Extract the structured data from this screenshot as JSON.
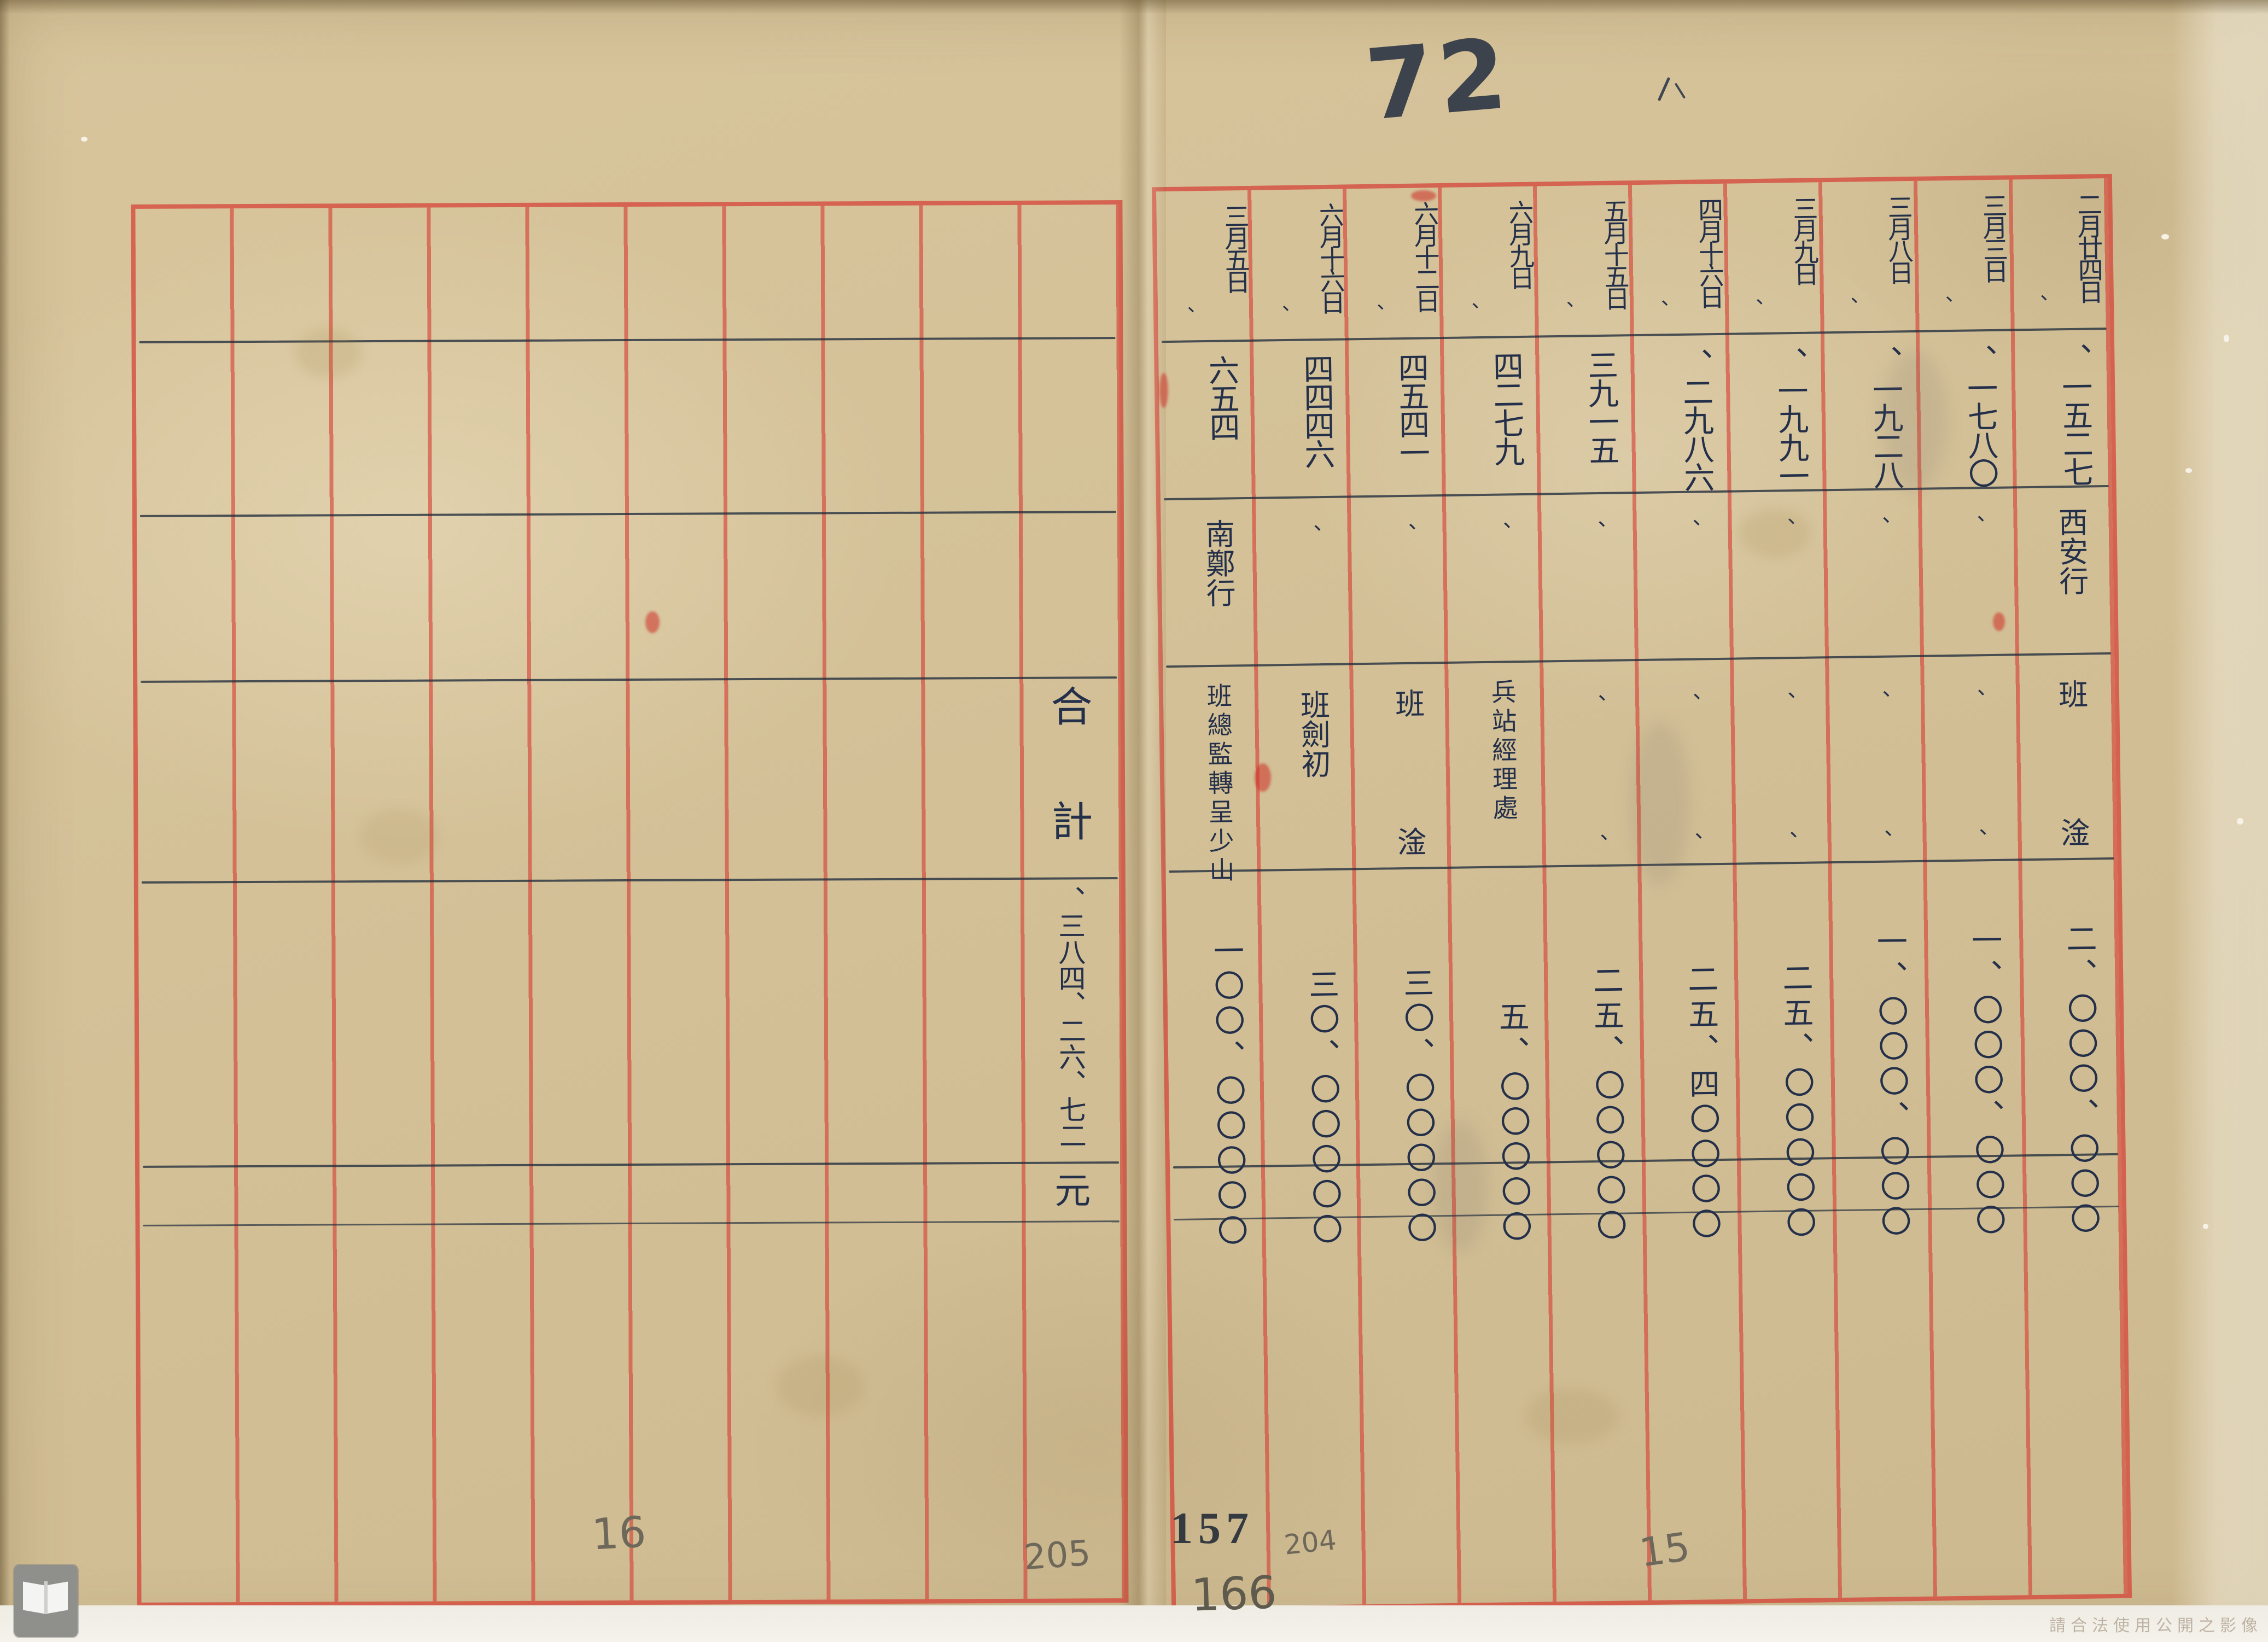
{
  "document": {
    "handwritten_page_mark": "72",
    "watermark": "請合法使用公開之影像",
    "page_numbers": {
      "left_pencil": "16",
      "left_inner_pencil": "205",
      "stamp_number": "157",
      "below_stamp_pencil": "166",
      "inner_small_pencil": "204",
      "right_pencil": "15"
    },
    "left_page": {
      "total_label_char1": "合",
      "total_label_char2": "計",
      "total_number": "、三八四、二六、七二",
      "total_unit": "元"
    },
    "right_page": {
      "entries": [
        {
          "date": "二月廿四日",
          "tick": "、",
          "serial": "、一五二七",
          "dest": "西安行",
          "payee_top": "班",
          "payee_bottom": "淦",
          "amount": "二、〇〇〇、〇〇〇"
        },
        {
          "date": "三月三日",
          "tick": "、",
          "serial": "、一七八〇",
          "dest": "、",
          "payee_top": "、",
          "payee_bottom": "、",
          "amount": "一、〇〇〇、〇〇〇"
        },
        {
          "date": "三月八日",
          "tick": "、",
          "serial": "、一九二八",
          "dest": "、",
          "payee_top": "、",
          "payee_bottom": "、",
          "amount": "一、〇〇〇、〇〇〇"
        },
        {
          "date": "三月九日",
          "tick": "、",
          "serial": "、一九九一",
          "dest": "、",
          "payee_top": "、",
          "payee_bottom": "、",
          "amount": "二五、〇〇〇〇〇"
        },
        {
          "date": "四月十六日",
          "tick": "、",
          "serial": "、二九八六",
          "dest": "、",
          "payee_top": "、",
          "payee_bottom": "、",
          "amount": "二五、四〇〇〇〇"
        },
        {
          "date": "五月十五日",
          "tick": "、",
          "serial": "三九一五",
          "dest": "、",
          "payee_top": "、",
          "payee_bottom": "、",
          "amount": "二五、〇〇〇〇〇"
        },
        {
          "date": "六月九日",
          "tick": "、",
          "serial": "四二七九",
          "dest": "、",
          "payee_top": "兵站經理處",
          "payee_bottom": "",
          "amount": "五、〇〇〇〇〇"
        },
        {
          "date": "六月十二日",
          "tick": "、",
          "serial": "四五四一",
          "dest": "、",
          "payee_top": "班",
          "payee_bottom": "淦",
          "amount": "三〇、〇〇〇〇〇"
        },
        {
          "date": "六月十六日",
          "tick": "、",
          "serial": "四四四六",
          "dest": "、",
          "payee_top": "班劍初",
          "payee_bottom": "",
          "amount": "三〇、〇〇〇〇〇"
        },
        {
          "date": "三月五日",
          "tick": "、",
          "serial": "六五四",
          "dest": "南鄭行",
          "payee_top": "班總監轉呈少山",
          "payee_bottom": "",
          "amount": "一〇〇、〇〇〇〇〇"
        }
      ]
    }
  }
}
